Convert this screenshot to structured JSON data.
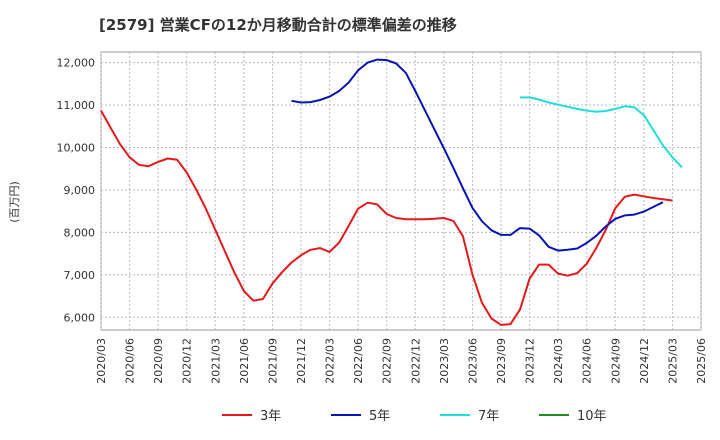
{
  "chart_data": {
    "type": "line",
    "title": "[2579]  営業CFの12か月移動合計の標準偏差の推移",
    "ylabel": "(百万円)",
    "ylim": [
      5700,
      12250
    ],
    "yticks": [
      6000,
      7000,
      8000,
      9000,
      10000,
      11000,
      12000
    ],
    "ytick_labels": [
      "6,000",
      "7,000",
      "8,000",
      "9,000",
      "10,000",
      "11,000",
      "12,000"
    ],
    "xticks": [
      "2020/03",
      "2020/06",
      "2020/09",
      "2020/12",
      "2021/03",
      "2021/06",
      "2021/09",
      "2021/12",
      "2022/03",
      "2022/06",
      "2022/09",
      "2022/12",
      "2023/03",
      "2023/06",
      "2023/09",
      "2023/12",
      "2024/03",
      "2024/06",
      "2024/09",
      "2024/12",
      "2025/03",
      "2025/06"
    ],
    "grid": true,
    "legend_position": "bottom",
    "series": [
      {
        "name": "3年",
        "color": "#e31a1c",
        "start": "2020/03",
        "values": [
          10870,
          10470,
          10080,
          9770,
          9590,
          9560,
          9660,
          9740,
          9710,
          9410,
          9010,
          8560,
          8060,
          7560,
          7060,
          6620,
          6390,
          6430,
          6790,
          7060,
          7290,
          7460,
          7590,
          7630,
          7540,
          7760,
          8150,
          8560,
          8700,
          8660,
          8430,
          8340,
          8310,
          8310,
          8310,
          8320,
          8340,
          8270,
          7910,
          7010,
          6340,
          5970,
          5820,
          5840,
          6180,
          6910,
          7240,
          7240,
          7030,
          6980,
          7040,
          7260,
          7630,
          8060,
          8570,
          8840,
          8890,
          8850,
          8810,
          8780,
          8750
        ]
      },
      {
        "name": "5年",
        "color": "#0a14b4",
        "start": "2021/11",
        "values": [
          11100,
          11060,
          11070,
          11120,
          11200,
          11330,
          11530,
          11820,
          12000,
          12070,
          12060,
          11980,
          11760,
          11330,
          10880,
          10430,
          9980,
          9520,
          9040,
          8580,
          8260,
          8050,
          7940,
          7940,
          8100,
          8090,
          7930,
          7660,
          7570,
          7590,
          7620,
          7750,
          7920,
          8140,
          8320,
          8400,
          8420,
          8490,
          8600,
          8710
        ]
      },
      {
        "name": "7年",
        "color": "#22dddd",
        "start": "2023/11",
        "values": [
          11180,
          11180,
          11130,
          11060,
          11010,
          10960,
          10910,
          10870,
          10840,
          10860,
          10910,
          10970,
          10950,
          10760,
          10410,
          10050,
          9770,
          9530
        ]
      },
      {
        "name": "10年",
        "color": "#228b22",
        "start": "2025/03",
        "values": []
      }
    ]
  }
}
